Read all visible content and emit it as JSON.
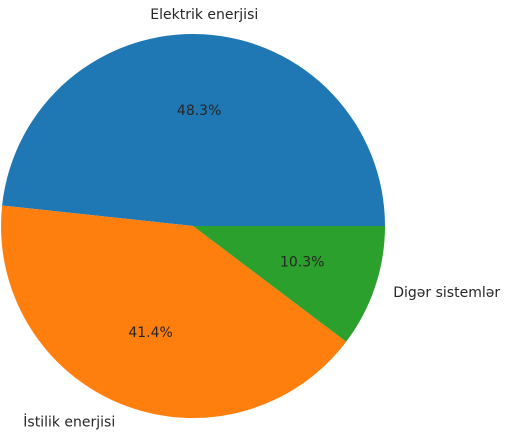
{
  "chart_data": {
    "type": "pie",
    "categories": [
      "Elektrik enerjisi",
      "İstilik enerjisi",
      "Digər sistemlər"
    ],
    "values": [
      48.3,
      41.4,
      10.3
    ],
    "value_labels": [
      "48.3%",
      "41.4%",
      "10.3%"
    ],
    "colors": [
      "#1f77b4",
      "#ff7f0e",
      "#2ca02c"
    ],
    "start_angle_deg": 0,
    "direction": "counterclockwise",
    "legend": "none"
  }
}
